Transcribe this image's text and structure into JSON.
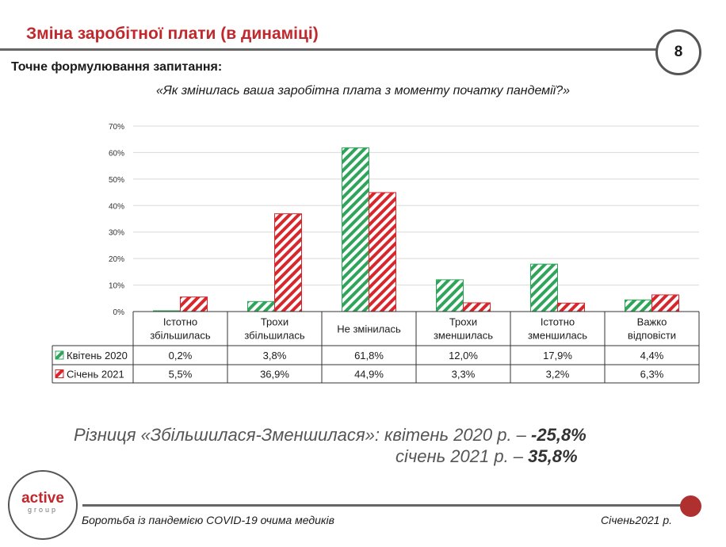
{
  "header": {
    "title": "Зміна заробітної плати (в динаміці)",
    "page_number": "8"
  },
  "question": {
    "label": "Точне формулювання запитання:",
    "text": "«Як змінилась ваша заробітна плата з моменту початку пандемії?»"
  },
  "chart_data": {
    "type": "bar",
    "y_ticks": [
      "0%",
      "10%",
      "20%",
      "30%",
      "40%",
      "50%",
      "60%",
      "70%"
    ],
    "ylim": [
      0,
      70
    ],
    "categories": [
      [
        "Істотно",
        "збільшилась"
      ],
      [
        "Трохи",
        "збільшилась"
      ],
      [
        "Не змінилась"
      ],
      [
        "Трохи",
        "зменшилась"
      ],
      [
        "Істотно",
        "зменшилась"
      ],
      [
        "Важко",
        "відповісти"
      ]
    ],
    "series": [
      {
        "name": "Квітень 2020",
        "color": "#2ea55a",
        "values": [
          0.2,
          3.8,
          61.8,
          12.0,
          17.9,
          4.4
        ],
        "labels": [
          "0,2%",
          "3,8%",
          "61,8%",
          "12,0%",
          "17,9%",
          "4,4%"
        ]
      },
      {
        "name": "Січень 2021",
        "color": "#d8262d",
        "values": [
          5.5,
          36.9,
          44.9,
          3.3,
          3.2,
          6.3
        ],
        "labels": [
          "5,5%",
          "36,9%",
          "44,9%",
          "3,3%",
          "3,2%",
          "6,3%"
        ]
      }
    ],
    "grid": true,
    "legend": "table-left"
  },
  "difference": {
    "label": "Різниця «Збільшилася-Зменшилася»: квітень 2020 р. –",
    "value_2020": "-25,8%",
    "label_2021": "січень 2021 р. –",
    "value_2021": "35,8%"
  },
  "logo": {
    "main": "active",
    "sub": "group"
  },
  "footer": {
    "left": "Боротьба із пандемією COVID-19 очима медиків",
    "right": "Січень2021 р."
  }
}
